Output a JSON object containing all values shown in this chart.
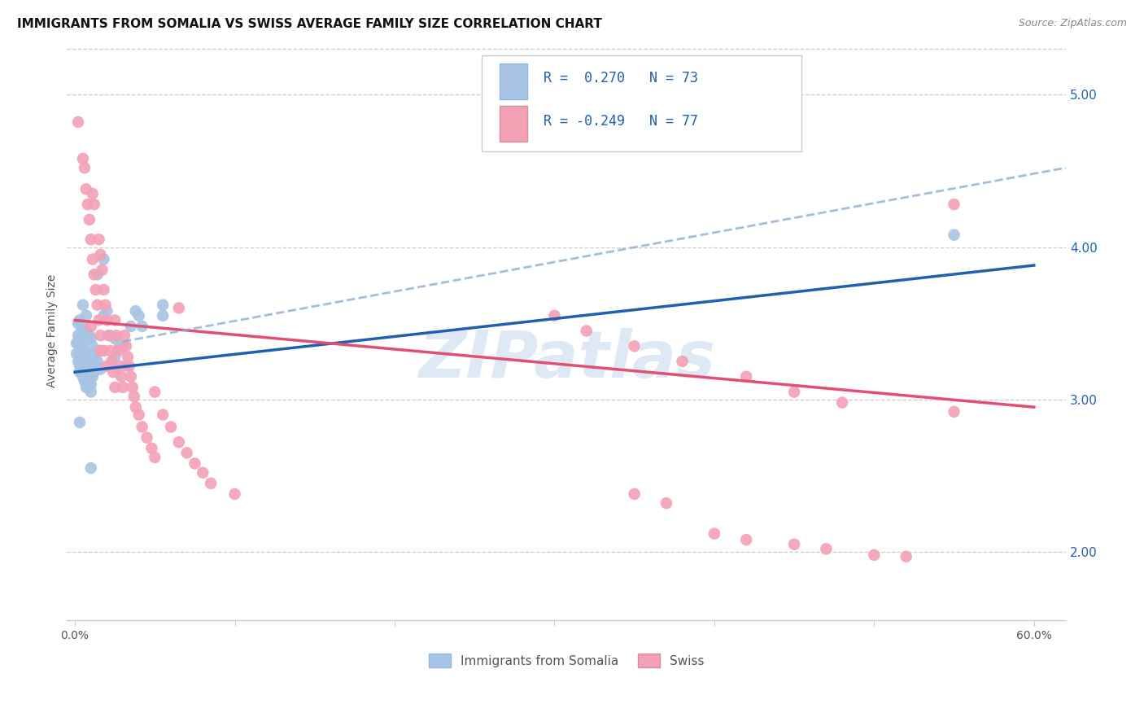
{
  "title": "IMMIGRANTS FROM SOMALIA VS SWISS AVERAGE FAMILY SIZE CORRELATION CHART",
  "source": "Source: ZipAtlas.com",
  "ylabel": "Average Family Size",
  "yticks": [
    2.0,
    3.0,
    4.0,
    5.0
  ],
  "ylim": [
    1.55,
    5.35
  ],
  "xlim": [
    -0.005,
    0.62
  ],
  "watermark": "ZIPatlas",
  "legend_label1": "Immigrants from Somalia",
  "legend_label2": "Swiss",
  "somalia_color": "#a8c4e5",
  "swiss_color": "#f4a0b5",
  "somalia_line_color": "#2060b0",
  "swiss_line_color": "#e05075",
  "somalia_scatter": [
    [
      0.001,
      3.37
    ],
    [
      0.001,
      3.3
    ],
    [
      0.002,
      3.37
    ],
    [
      0.002,
      3.25
    ],
    [
      0.002,
      3.5
    ],
    [
      0.002,
      3.42
    ],
    [
      0.003,
      3.52
    ],
    [
      0.003,
      3.4
    ],
    [
      0.003,
      3.3
    ],
    [
      0.003,
      3.22
    ],
    [
      0.003,
      3.18
    ],
    [
      0.004,
      3.5
    ],
    [
      0.004,
      3.45
    ],
    [
      0.004,
      3.35
    ],
    [
      0.004,
      3.28
    ],
    [
      0.004,
      3.2
    ],
    [
      0.005,
      3.62
    ],
    [
      0.005,
      3.38
    ],
    [
      0.005,
      3.28
    ],
    [
      0.005,
      3.22
    ],
    [
      0.005,
      3.15
    ],
    [
      0.006,
      3.32
    ],
    [
      0.006,
      3.25
    ],
    [
      0.006,
      3.18
    ],
    [
      0.006,
      3.12
    ],
    [
      0.007,
      3.55
    ],
    [
      0.007,
      3.45
    ],
    [
      0.007,
      3.3
    ],
    [
      0.007,
      3.22
    ],
    [
      0.007,
      3.15
    ],
    [
      0.007,
      3.08
    ],
    [
      0.008,
      3.42
    ],
    [
      0.008,
      3.3
    ],
    [
      0.008,
      3.22
    ],
    [
      0.008,
      3.15
    ],
    [
      0.008,
      3.08
    ],
    [
      0.009,
      3.42
    ],
    [
      0.009,
      3.3
    ],
    [
      0.009,
      3.2
    ],
    [
      0.009,
      3.12
    ],
    [
      0.01,
      3.4
    ],
    [
      0.01,
      3.28
    ],
    [
      0.01,
      3.18
    ],
    [
      0.01,
      3.1
    ],
    [
      0.01,
      3.05
    ],
    [
      0.011,
      3.35
    ],
    [
      0.011,
      3.25
    ],
    [
      0.011,
      3.15
    ],
    [
      0.012,
      3.28
    ],
    [
      0.012,
      3.18
    ],
    [
      0.013,
      3.22
    ],
    [
      0.014,
      3.82
    ],
    [
      0.014,
      3.25
    ],
    [
      0.015,
      3.32
    ],
    [
      0.016,
      3.2
    ],
    [
      0.018,
      3.92
    ],
    [
      0.018,
      3.55
    ],
    [
      0.02,
      3.58
    ],
    [
      0.022,
      3.42
    ],
    [
      0.025,
      3.4
    ],
    [
      0.025,
      3.28
    ],
    [
      0.028,
      3.35
    ],
    [
      0.03,
      3.35
    ],
    [
      0.032,
      3.22
    ],
    [
      0.035,
      3.48
    ],
    [
      0.038,
      3.58
    ],
    [
      0.04,
      3.55
    ],
    [
      0.042,
      3.48
    ],
    [
      0.01,
      2.55
    ],
    [
      0.003,
      2.85
    ],
    [
      0.055,
      3.62
    ],
    [
      0.055,
      3.55
    ],
    [
      0.55,
      4.08
    ]
  ],
  "swiss_scatter": [
    [
      0.002,
      4.82
    ],
    [
      0.005,
      4.58
    ],
    [
      0.006,
      4.52
    ],
    [
      0.007,
      4.38
    ],
    [
      0.008,
      4.28
    ],
    [
      0.009,
      4.18
    ],
    [
      0.01,
      4.05
    ],
    [
      0.01,
      3.48
    ],
    [
      0.011,
      4.35
    ],
    [
      0.011,
      3.92
    ],
    [
      0.012,
      4.28
    ],
    [
      0.012,
      3.82
    ],
    [
      0.013,
      3.72
    ],
    [
      0.014,
      3.62
    ],
    [
      0.015,
      4.05
    ],
    [
      0.015,
      3.52
    ],
    [
      0.016,
      3.95
    ],
    [
      0.016,
      3.42
    ],
    [
      0.016,
      3.32
    ],
    [
      0.017,
      3.85
    ],
    [
      0.018,
      3.72
    ],
    [
      0.018,
      3.32
    ],
    [
      0.019,
      3.62
    ],
    [
      0.02,
      3.52
    ],
    [
      0.02,
      3.22
    ],
    [
      0.021,
      3.42
    ],
    [
      0.022,
      3.32
    ],
    [
      0.023,
      3.25
    ],
    [
      0.024,
      3.18
    ],
    [
      0.025,
      3.52
    ],
    [
      0.025,
      3.08
    ],
    [
      0.026,
      3.42
    ],
    [
      0.027,
      3.32
    ],
    [
      0.028,
      3.22
    ],
    [
      0.029,
      3.15
    ],
    [
      0.03,
      3.08
    ],
    [
      0.031,
      3.42
    ],
    [
      0.032,
      3.35
    ],
    [
      0.033,
      3.28
    ],
    [
      0.034,
      3.22
    ],
    [
      0.035,
      3.15
    ],
    [
      0.036,
      3.08
    ],
    [
      0.037,
      3.02
    ],
    [
      0.038,
      2.95
    ],
    [
      0.04,
      2.9
    ],
    [
      0.042,
      2.82
    ],
    [
      0.045,
      2.75
    ],
    [
      0.048,
      2.68
    ],
    [
      0.05,
      3.05
    ],
    [
      0.05,
      2.62
    ],
    [
      0.055,
      2.9
    ],
    [
      0.06,
      2.82
    ],
    [
      0.065,
      3.6
    ],
    [
      0.065,
      2.72
    ],
    [
      0.07,
      2.65
    ],
    [
      0.075,
      2.58
    ],
    [
      0.08,
      2.52
    ],
    [
      0.085,
      2.45
    ],
    [
      0.1,
      2.38
    ],
    [
      0.3,
      3.55
    ],
    [
      0.32,
      3.45
    ],
    [
      0.35,
      3.35
    ],
    [
      0.38,
      3.25
    ],
    [
      0.42,
      3.15
    ],
    [
      0.45,
      3.05
    ],
    [
      0.48,
      2.98
    ],
    [
      0.35,
      2.38
    ],
    [
      0.37,
      2.32
    ],
    [
      0.4,
      2.12
    ],
    [
      0.42,
      2.08
    ],
    [
      0.45,
      2.05
    ],
    [
      0.47,
      2.02
    ],
    [
      0.5,
      1.98
    ],
    [
      0.52,
      1.97
    ],
    [
      0.55,
      4.28
    ],
    [
      0.55,
      2.92
    ]
  ],
  "somalia_trendline": {
    "x": [
      0.0,
      0.6
    ],
    "y": [
      3.18,
      3.88
    ]
  },
  "swiss_trendline": {
    "x": [
      0.0,
      0.6
    ],
    "y": [
      3.52,
      2.95
    ]
  },
  "somalia_dashed": {
    "x": [
      0.03,
      0.62
    ],
    "y": [
      3.38,
      4.52
    ]
  },
  "title_fontsize": 11,
  "source_fontsize": 9,
  "axis_label_fontsize": 10,
  "tick_fontsize": 10,
  "legend_fontsize": 12
}
